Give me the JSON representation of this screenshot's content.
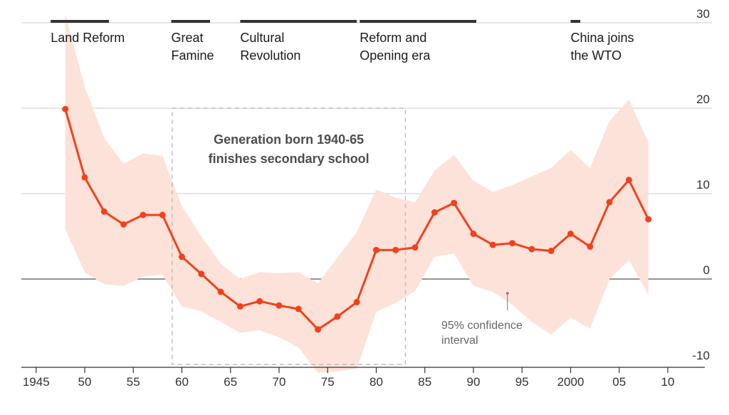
{
  "chart_data": {
    "type": "line",
    "title": "",
    "xlabel": "",
    "ylabel": "",
    "xlim": [
      1942,
      2013
    ],
    "ylim": [
      -10,
      30
    ],
    "x_ticks": [
      1945,
      1950,
      1955,
      1960,
      1965,
      1970,
      1975,
      1980,
      1985,
      1990,
      1995,
      2000,
      2005,
      2010
    ],
    "x_tick_labels": [
      "1945",
      "50",
      "55",
      "60",
      "65",
      "70",
      "75",
      "80",
      "85",
      "90",
      "95",
      "2000",
      "05",
      "10"
    ],
    "y_ticks": [
      30,
      20,
      10,
      0,
      -10
    ],
    "y_tick_labels": [
      "30",
      "20",
      "10",
      "0",
      "-10"
    ],
    "y_axis_position": "right",
    "grid": true,
    "colors": {
      "line": "#f2411c",
      "band": "#fde2d9",
      "era_bar": "#333333",
      "grid": "#cccccc",
      "zero_line": "#555555",
      "dashed_box": "#bbbbbb"
    },
    "series": [
      {
        "x": [
          1948,
          1950,
          1952,
          1954,
          1956,
          1958,
          1960,
          1962,
          1964,
          1966,
          1968,
          1970,
          1972,
          1974,
          1976,
          1978,
          1980,
          1982,
          1984,
          1986,
          1988,
          1990,
          1992,
          1994,
          1996,
          1998,
          2000,
          2002,
          2004,
          2006,
          2008
        ],
        "values": [
          19.9,
          11.9,
          7.9,
          6.4,
          7.5,
          7.5,
          2.6,
          0.6,
          -1.5,
          -3.2,
          -2.6,
          -3.1,
          -3.5,
          -5.9,
          -4.4,
          -2.7,
          3.4,
          3.4,
          3.7,
          7.8,
          8.9,
          5.3,
          4.0,
          4.2,
          3.5,
          3.3,
          5.3,
          3.8,
          9.0,
          11.6,
          7.0
        ]
      }
    ],
    "confidence_band": {
      "label": "95% confidence interval",
      "label_lines": [
        "95% confidence",
        "interval"
      ],
      "x": [
        1948,
        1950,
        1952,
        1954,
        1956,
        1958,
        1960,
        1962,
        1964,
        1966,
        1968,
        1970,
        1972,
        1974,
        1976,
        1978,
        1980,
        1982,
        1984,
        1986,
        1988,
        1990,
        1992,
        1994,
        1996,
        1998,
        2000,
        2002,
        2004,
        2006,
        2008
      ],
      "upper": [
        31,
        22.5,
        16.5,
        13.5,
        14.7,
        14.4,
        8.5,
        5.0,
        1.8,
        0.0,
        0.8,
        0.7,
        0.8,
        -0.5,
        2.5,
        5.5,
        10.5,
        9.5,
        9.0,
        12.7,
        14.5,
        11.5,
        10.2,
        11.0,
        12.0,
        13.0,
        15.1,
        13.0,
        18.5,
        21.0,
        16.0
      ],
      "lower": [
        5.8,
        0.8,
        -0.6,
        -0.8,
        0.3,
        0.5,
        -3.2,
        -3.8,
        -5.0,
        -6.3,
        -6.0,
        -6.8,
        -8.0,
        -11.0,
        -10.8,
        -10.5,
        -3.8,
        -2.8,
        -1.4,
        2.6,
        3.0,
        -0.8,
        -1.5,
        -3.0,
        -5.0,
        -6.5,
        -4.5,
        -5.8,
        0.0,
        2.2,
        -1.8
      ]
    },
    "eras": [
      {
        "label_lines": [
          "Land Reform"
        ],
        "start": 1946.5,
        "end": 1952.5
      },
      {
        "label_lines": [
          "Great",
          "Famine"
        ],
        "start": 1958.9,
        "end": 1962.9
      },
      {
        "label_lines": [
          "Cultural",
          "Revolution"
        ],
        "start": 1966,
        "end": 1978
      },
      {
        "label_lines": [
          "Reform and",
          "Opening era"
        ],
        "start": 1978.3,
        "end": 1990.3
      },
      {
        "label_lines": [
          "China joins",
          "the WTO"
        ],
        "start": 2000,
        "end": 2001
      }
    ],
    "highlight_box": {
      "label_lines": [
        "Generation born 1940-65",
        "finishes secondary school"
      ],
      "x_start": 1959,
      "x_end": 1983,
      "y_top": 20,
      "y_bottom": -10
    }
  }
}
